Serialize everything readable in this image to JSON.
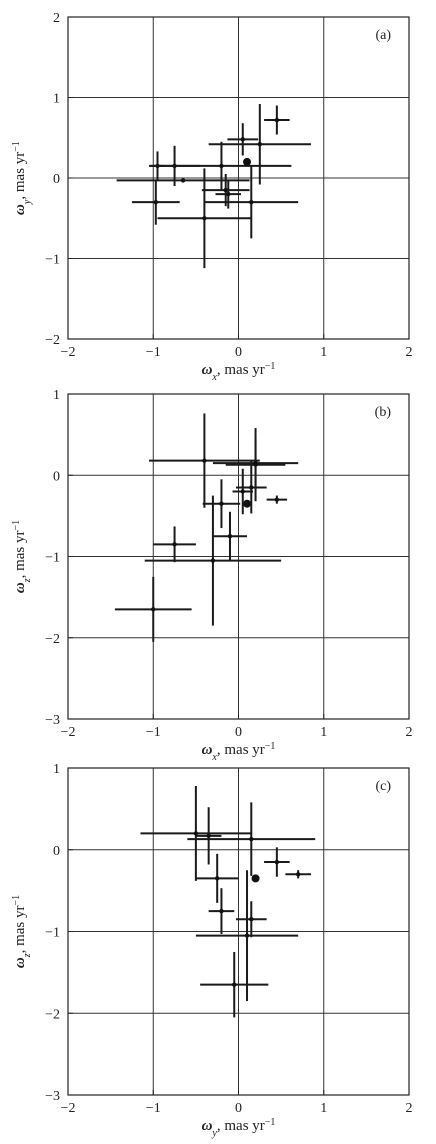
{
  "chart_data": [
    {
      "type": "scatter",
      "panel_label": "(a)",
      "xlabel": {
        "symbol": "ω",
        "sub": "x",
        "unit": ", mas yr",
        "sup": "−1"
      },
      "ylabel": {
        "symbol": "ω",
        "sub": "y",
        "unit": ", mas yr",
        "sup": "−1"
      },
      "xlim": [
        -2,
        2
      ],
      "ylim": [
        -2,
        2
      ],
      "xticks": [
        -2,
        -1,
        0,
        1,
        2
      ],
      "yticks": [
        -2,
        -1,
        0,
        1,
        2
      ],
      "xtick_labels": [
        "−2",
        "−1",
        "0",
        "1",
        "2"
      ],
      "ytick_labels": [
        "−2",
        "−1",
        "0",
        "1",
        "2"
      ],
      "grid": true,
      "points": [
        {
          "x": -0.97,
          "y": -0.3,
          "xerr": 0.28,
          "yerr": 0.28
        },
        {
          "x": -0.95,
          "y": 0.15,
          "xerr": 0.08,
          "yerr": 0.18
        },
        {
          "x": -0.75,
          "y": 0.15,
          "xerr": 0.3,
          "yerr": 0.25
        },
        {
          "x": -0.65,
          "y": -0.03,
          "xerr": 0.78,
          "yerr": 0.02
        },
        {
          "x": -0.4,
          "y": -0.5,
          "xerr": 0.55,
          "yerr": 0.62
        },
        {
          "x": -0.2,
          "y": 0.15,
          "xerr": 0.82,
          "yerr": 0.3
        },
        {
          "x": -0.15,
          "y": -0.15,
          "xerr": 0.28,
          "yerr": 0.2
        },
        {
          "x": -0.12,
          "y": -0.2,
          "xerr": 0.15,
          "yerr": 0.18
        },
        {
          "x": 0.05,
          "y": 0.48,
          "xerr": 0.18,
          "yerr": 0.2
        },
        {
          "x": 0.1,
          "y": 0.2,
          "xerr": 0.02,
          "yerr": 0.02
        },
        {
          "x": 0.15,
          "y": -0.3,
          "xerr": 0.55,
          "yerr": 0.45
        },
        {
          "x": 0.25,
          "y": 0.42,
          "xerr": 0.6,
          "yerr": 0.5
        },
        {
          "x": 0.45,
          "y": 0.72,
          "xerr": 0.15,
          "yerr": 0.18
        }
      ]
    },
    {
      "type": "scatter",
      "panel_label": "(b)",
      "xlabel": {
        "symbol": "ω",
        "sub": "x",
        "unit": ", mas yr",
        "sup": "−1"
      },
      "ylabel": {
        "symbol": "ω",
        "sub": "z",
        "unit": ", mas yr",
        "sup": "−1"
      },
      "xlim": [
        -2,
        2
      ],
      "ylim": [
        -3,
        1
      ],
      "xticks": [
        -2,
        -1,
        0,
        1,
        2
      ],
      "yticks": [
        -3,
        -2,
        -1,
        0,
        1
      ],
      "xtick_labels": [
        "−2",
        "−1",
        "0",
        "1",
        "2"
      ],
      "ytick_labels": [
        "−3",
        "−2",
        "−1",
        "0",
        "1"
      ],
      "grid": true,
      "points": [
        {
          "x": -1.0,
          "y": -1.65,
          "xerr": 0.45,
          "yerr": 0.4
        },
        {
          "x": -0.75,
          "y": -0.85,
          "xerr": 0.25,
          "yerr": 0.22
        },
        {
          "x": -0.4,
          "y": 0.18,
          "xerr": 0.65,
          "yerr": 0.58
        },
        {
          "x": -0.3,
          "y": -1.05,
          "xerr": 0.8,
          "yerr": 0.8
        },
        {
          "x": -0.2,
          "y": -0.35,
          "xerr": 0.22,
          "yerr": 0.3
        },
        {
          "x": -0.1,
          "y": -0.75,
          "xerr": 0.2,
          "yerr": 0.3
        },
        {
          "x": 0.05,
          "y": -0.2,
          "xerr": 0.12,
          "yerr": 0.28
        },
        {
          "x": 0.1,
          "y": -0.35,
          "xerr": 0.02,
          "yerr": 0.02
        },
        {
          "x": 0.15,
          "y": -0.15,
          "xerr": 0.18,
          "yerr": 0.32
        },
        {
          "x": 0.2,
          "y": 0.13,
          "xerr": 0.35,
          "yerr": 0.45
        },
        {
          "x": 0.2,
          "y": 0.15,
          "xerr": 0.5,
          "yerr": 0.3
        },
        {
          "x": 0.45,
          "y": -0.3,
          "xerr": 0.12,
          "yerr": 0.05
        }
      ]
    },
    {
      "type": "scatter",
      "panel_label": "(c)",
      "xlabel": {
        "symbol": "ω",
        "sub": "y",
        "unit": ", mas yr",
        "sup": "−1"
      },
      "ylabel": {
        "symbol": "ω",
        "sub": "z",
        "unit": ", mas yr",
        "sup": "−1"
      },
      "xlim": [
        -2,
        2
      ],
      "ylim": [
        -3,
        1
      ],
      "xticks": [
        -2,
        -1,
        0,
        1,
        2
      ],
      "yticks": [
        -3,
        -2,
        -1,
        0,
        1
      ],
      "xtick_labels": [
        "−2",
        "−1",
        "0",
        "1",
        "2"
      ],
      "ytick_labels": [
        "−3",
        "−2",
        "−1",
        "0",
        "1"
      ],
      "grid": true,
      "points": [
        {
          "x": -0.5,
          "y": 0.2,
          "xerr": 0.65,
          "yerr": 0.58
        },
        {
          "x": -0.35,
          "y": 0.17,
          "xerr": 0.15,
          "yerr": 0.35
        },
        {
          "x": -0.25,
          "y": -0.35,
          "xerr": 0.25,
          "yerr": 0.3
        },
        {
          "x": -0.2,
          "y": -0.75,
          "xerr": 0.15,
          "yerr": 0.28
        },
        {
          "x": -0.05,
          "y": -1.65,
          "xerr": 0.4,
          "yerr": 0.4
        },
        {
          "x": 0.1,
          "y": -1.05,
          "xerr": 0.6,
          "yerr": 0.8
        },
        {
          "x": 0.15,
          "y": -0.85,
          "xerr": 0.18,
          "yerr": 0.22
        },
        {
          "x": 0.15,
          "y": 0.13,
          "xerr": 0.75,
          "yerr": 0.45
        },
        {
          "x": 0.2,
          "y": -0.35,
          "xerr": 0.02,
          "yerr": 0.02
        },
        {
          "x": 0.45,
          "y": -0.15,
          "xerr": 0.15,
          "yerr": 0.18
        },
        {
          "x": 0.7,
          "y": -0.3,
          "xerr": 0.15,
          "yerr": 0.05
        }
      ]
    }
  ]
}
